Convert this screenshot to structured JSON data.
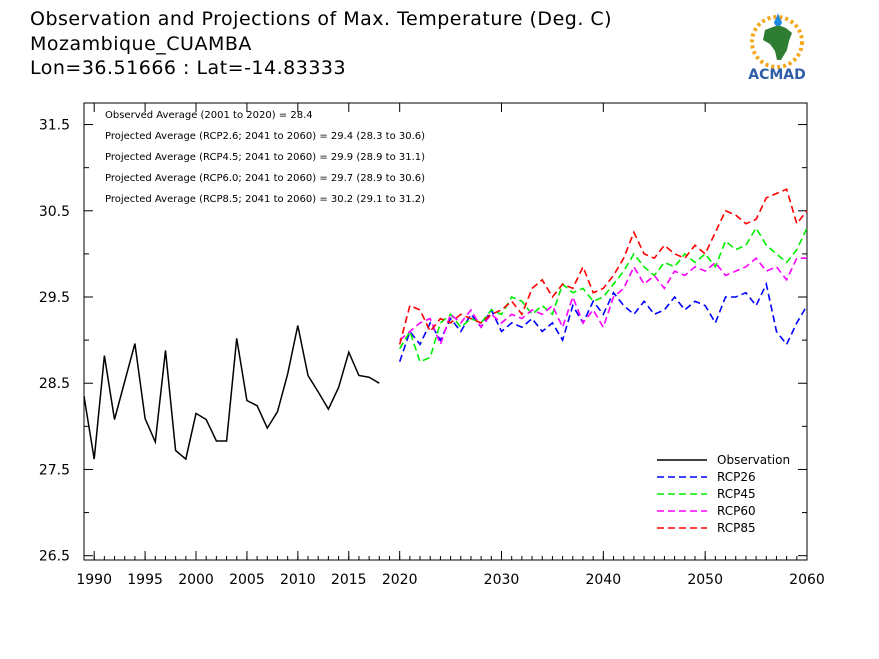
{
  "header": {
    "title_line1": "Observation and Projections of Max. Temperature (Deg. C)",
    "title_line2": "Mozambique_CUAMBA",
    "title_line3": "Lon=36.51666 : Lat=-14.83333"
  },
  "logo": {
    "text": "ACMAD",
    "icon": "acmad-africa-logo-icon"
  },
  "colors": {
    "observation": "#000000",
    "rcp26": "#0000ff",
    "rcp45": "#00ee00",
    "rcp60": "#ff00ff",
    "rcp85": "#ff0000"
  },
  "chart_data": {
    "type": "line",
    "xlim": [
      1989,
      2060
    ],
    "ylim": [
      26.45,
      31.75
    ],
    "y_ticks": [
      "26.5",
      "27.5",
      "28.5",
      "29.5",
      "30.5",
      "31.5"
    ],
    "x_ticks": [
      "1990",
      "1995",
      "2000",
      "2005",
      "2010",
      "2015",
      "2020",
      "2030",
      "2040",
      "2050",
      "2060"
    ],
    "annotations": [
      "Observed Average (2001 to 2020) = 28.4",
      "Projected Average (RCP2.6; 2041 to 2060) = 29.4 (28.3 to 30.6)",
      "Projected Average (RCP4.5; 2041 to 2060) = 29.9 (28.9 to 31.1)",
      "Projected Average (RCP6.0; 2041 to 2060) = 29.7 (28.9 to 30.6)",
      "Projected Average (RCP8.5; 2041 to 2060) = 30.2 (29.1 to 31.2)"
    ],
    "legend_position": "bottom-right",
    "series": [
      {
        "name": "Observation",
        "key": "observation",
        "dashed": false,
        "x": [
          1989,
          1990,
          1991,
          1992,
          1993,
          1994,
          1995,
          1996,
          1997,
          1998,
          1999,
          2000,
          2001,
          2002,
          2003,
          2004,
          2005,
          2006,
          2007,
          2008,
          2009,
          2010,
          2011,
          2012,
          2013,
          2014,
          2015,
          2016,
          2017,
          2018,
          2019
        ],
        "y": [
          28.35,
          27.62,
          28.82,
          28.08,
          28.52,
          28.96,
          28.09,
          27.82,
          28.88,
          27.72,
          27.62,
          28.15,
          28.08,
          27.83,
          27.83,
          29.02,
          28.3,
          28.24,
          27.98,
          28.17,
          28.61,
          29.17,
          28.59,
          28.4,
          28.2,
          28.45,
          28.86,
          28.59,
          28.57,
          28.5,
          null
        ]
      },
      {
        "name": "RCP26",
        "key": "rcp26",
        "dashed": true,
        "x": [
          2020,
          2021,
          2022,
          2023,
          2024,
          2025,
          2026,
          2027,
          2028,
          2029,
          2030,
          2031,
          2032,
          2033,
          2034,
          2035,
          2036,
          2037,
          2038,
          2039,
          2040,
          2041,
          2042,
          2043,
          2044,
          2045,
          2046,
          2047,
          2048,
          2049,
          2050,
          2051,
          2052,
          2053,
          2054,
          2055,
          2056,
          2057,
          2058,
          2059,
          2060
        ],
        "y": [
          28.75,
          29.1,
          28.95,
          29.2,
          29.0,
          29.25,
          29.1,
          29.3,
          29.15,
          29.35,
          29.1,
          29.2,
          29.15,
          29.25,
          29.1,
          29.2,
          29.0,
          29.4,
          29.2,
          29.45,
          29.3,
          29.55,
          29.4,
          29.3,
          29.45,
          29.3,
          29.35,
          29.5,
          29.35,
          29.45,
          29.4,
          29.2,
          29.5,
          29.5,
          29.55,
          29.4,
          29.65,
          29.1,
          28.95,
          29.2,
          29.4
        ]
      },
      {
        "name": "RCP45",
        "key": "rcp45",
        "dashed": true,
        "x": [
          2020,
          2021,
          2022,
          2023,
          2024,
          2025,
          2026,
          2027,
          2028,
          2029,
          2030,
          2031,
          2032,
          2033,
          2034,
          2035,
          2036,
          2037,
          2038,
          2039,
          2040,
          2041,
          2042,
          2043,
          2044,
          2045,
          2046,
          2047,
          2048,
          2049,
          2050,
          2051,
          2052,
          2053,
          2054,
          2055,
          2056,
          2057,
          2058,
          2059,
          2060
        ],
        "y": [
          28.9,
          29.1,
          28.75,
          28.8,
          29.2,
          29.3,
          29.15,
          29.25,
          29.2,
          29.35,
          29.3,
          29.5,
          29.45,
          29.3,
          29.4,
          29.3,
          29.65,
          29.55,
          29.6,
          29.45,
          29.5,
          29.65,
          29.8,
          30.0,
          29.85,
          29.75,
          29.9,
          29.85,
          30.0,
          29.9,
          30.0,
          29.85,
          30.15,
          30.05,
          30.1,
          30.3,
          30.1,
          30.0,
          29.9,
          30.05,
          30.3
        ]
      },
      {
        "name": "RCP60",
        "key": "rcp60",
        "dashed": true,
        "x": [
          2020,
          2021,
          2022,
          2023,
          2024,
          2025,
          2026,
          2027,
          2028,
          2029,
          2030,
          2031,
          2032,
          2033,
          2034,
          2035,
          2036,
          2037,
          2038,
          2039,
          2040,
          2041,
          2042,
          2043,
          2044,
          2045,
          2046,
          2047,
          2048,
          2049,
          2050,
          2051,
          2052,
          2053,
          2054,
          2055,
          2056,
          2057,
          2058,
          2059,
          2060
        ],
        "y": [
          29.0,
          29.1,
          29.2,
          29.25,
          28.95,
          29.3,
          29.2,
          29.35,
          29.15,
          29.3,
          29.2,
          29.3,
          29.25,
          29.35,
          29.3,
          29.4,
          29.15,
          29.5,
          29.2,
          29.35,
          29.15,
          29.5,
          29.6,
          29.85,
          29.65,
          29.75,
          29.6,
          29.8,
          29.75,
          29.85,
          29.8,
          29.9,
          29.75,
          29.8,
          29.85,
          29.95,
          29.8,
          29.85,
          29.7,
          29.95,
          29.95
        ]
      },
      {
        "name": "RCP85",
        "key": "rcp85",
        "dashed": true,
        "x": [
          2020,
          2021,
          2022,
          2023,
          2024,
          2025,
          2026,
          2027,
          2028,
          2029,
          2030,
          2031,
          2032,
          2033,
          2034,
          2035,
          2036,
          2037,
          2038,
          2039,
          2040,
          2041,
          2042,
          2043,
          2044,
          2045,
          2046,
          2047,
          2048,
          2049,
          2050,
          2051,
          2052,
          2053,
          2054,
          2055,
          2056,
          2057,
          2058,
          2059,
          2060
        ],
        "y": [
          28.95,
          29.4,
          29.35,
          29.1,
          29.25,
          29.2,
          29.3,
          29.25,
          29.2,
          29.3,
          29.35,
          29.45,
          29.3,
          29.6,
          29.7,
          29.5,
          29.65,
          29.6,
          29.85,
          29.55,
          29.6,
          29.75,
          29.95,
          30.25,
          30.0,
          29.95,
          30.1,
          30.0,
          29.95,
          30.1,
          30.0,
          30.25,
          30.5,
          30.45,
          30.35,
          30.4,
          30.65,
          30.7,
          30.75,
          30.35,
          30.5
        ]
      }
    ]
  }
}
